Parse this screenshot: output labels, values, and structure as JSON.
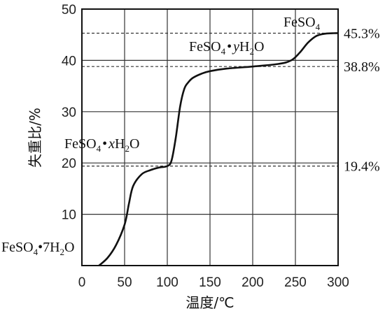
{
  "chart_data": {
    "type": "line",
    "xlabel": "温度/℃",
    "ylabel": "失重比/%",
    "xlim": [
      0,
      300
    ],
    "ylim": [
      0,
      50
    ],
    "grid": true,
    "x_ticks": [
      0,
      50,
      100,
      150,
      200,
      250,
      300
    ],
    "y_ticks": [
      10,
      20,
      30,
      40,
      50
    ],
    "series": [
      {
        "x": [
          20,
          30,
          40,
          50,
          55,
          60,
          70,
          80,
          90,
          100,
          105,
          110,
          115,
          120,
          125,
          130,
          140,
          150,
          170,
          200,
          230,
          245,
          255,
          265,
          275,
          285,
          295,
          300
        ],
        "y": [
          0,
          1.5,
          4,
          8,
          12,
          15.5,
          17.8,
          18.6,
          19.1,
          19.4,
          20.5,
          25,
          31,
          34.5,
          35.8,
          36.6,
          37.4,
          37.9,
          38.4,
          38.8,
          39.3,
          40.0,
          41.5,
          43.5,
          44.8,
          45.2,
          45.3,
          45.3
        ]
      }
    ],
    "reference_lines": [
      {
        "y": 45.3,
        "label": "45.3%"
      },
      {
        "y": 38.8,
        "label": "38.8%"
      },
      {
        "y": 19.4,
        "label": "19.4%"
      }
    ],
    "annotations": [
      {
        "parts": [
          "FeSO",
          "4"
        ]
      },
      {
        "parts": [
          "FeSO",
          "4",
          "•",
          "y",
          "H",
          "2",
          "O"
        ]
      },
      {
        "parts": [
          "FeSO",
          "4",
          "•",
          "x",
          "H",
          "2",
          "O"
        ]
      },
      {
        "parts": [
          "FeSO",
          "4",
          "•7H",
          "2",
          "O"
        ]
      }
    ]
  }
}
